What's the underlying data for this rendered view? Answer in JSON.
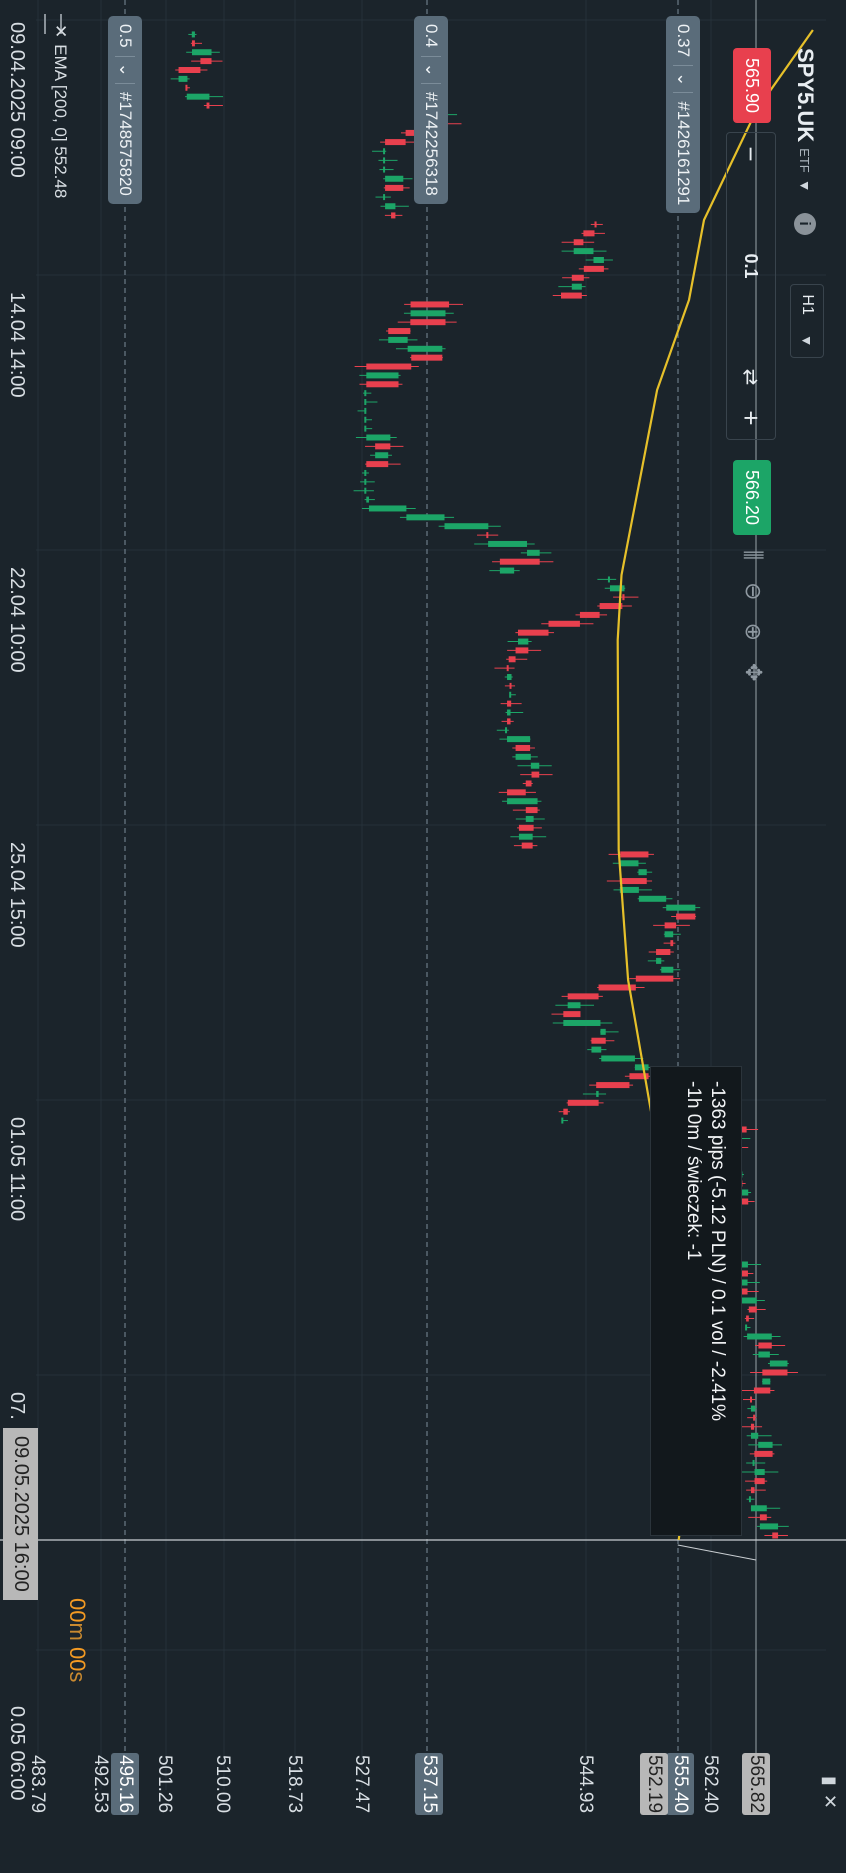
{
  "header": {
    "symbol": "SPY5.UK",
    "symbol_type": "ETF",
    "info_icon": "i",
    "timeframe": "H1",
    "sell_price": "565.90",
    "minus_label": "−",
    "quantity": "0.1",
    "plus_label": "+",
    "buy_price": "566.20",
    "tools": [
      "candles-icon",
      "zoom-out-icon",
      "zoom-in-icon",
      "move-icon"
    ]
  },
  "positions": [
    {
      "volume": "0.37",
      "id": "#1426161291"
    },
    {
      "volume": "0.4",
      "id": "#1742256318"
    },
    {
      "volume": "0.5",
      "id": "#1748575820"
    }
  ],
  "price_axis": {
    "ticks": [
      "562.40",
      "544.93",
      "527.47",
      "518.73",
      "510.00",
      "501.26",
      "492.53",
      "483.79"
    ],
    "labels": {
      "current": "565.82",
      "pos1": "555.40",
      "ema": "552.19",
      "pos2": "537.15",
      "pos3": "495.16"
    }
  },
  "time_axis": {
    "ticks": [
      "09.04.2025 09:00",
      "14.04 14:00",
      "22.04 10:00",
      "25.04 15:00",
      "01.05 11:00",
      "07."
    ],
    "crosshair": "09.05.2025 16:00",
    "right": "0.05 06:00"
  },
  "tooltip": {
    "line1": "-1363 pips (-5.12 PLN) / 0.1 vol / -2.41%",
    "line2": "-1h 0m / świeczek: -1"
  },
  "countdown": {
    "minutes": "00",
    "m": "m",
    "seconds": "00",
    "s": "s"
  },
  "ema_legend": {
    "text": "EMA [200, 0] 552.48"
  },
  "colors": {
    "up": "#1ca567",
    "down": "#e8404e",
    "ema": "#e6c02a",
    "bg": "#1b242b",
    "pos_label": "#5a6c7a"
  },
  "chart_data": {
    "type": "candlestick",
    "ylim": [
      483.79,
      568.0
    ],
    "ema_points": [
      [
        "09.04.2025 09:00",
        566.6
      ],
      [
        "10.04",
        560.6
      ],
      [
        "11.04",
        555.0
      ],
      [
        "14.04 14:00",
        553.4
      ],
      [
        "16.04",
        550.0
      ],
      [
        "22.04 10:00",
        546.2
      ],
      [
        "23.04",
        545.8
      ],
      [
        "25.04 15:00",
        545.9
      ],
      [
        "29.04",
        546.9
      ],
      [
        "01.05 11:00",
        549.6
      ],
      [
        "05.05",
        551.3
      ],
      [
        "08.05",
        553.6
      ],
      [
        "09.05.2025 16:00",
        552.3
      ]
    ],
    "segments": [
      {
        "from": "09.04.2025 09:00",
        "to": "10.04",
        "low": 495,
        "high": 506
      },
      {
        "from": "10.04",
        "to": "11.04",
        "low": 521,
        "high": 536
      },
      {
        "from": "11.04",
        "to": "14.04 14:00",
        "low": 536,
        "high": 545
      },
      {
        "from": "14.04 14:00",
        "to": "22.04 10:00",
        "low": 519,
        "high": 539
      },
      {
        "from": "22.04 10:00",
        "to": "25.04 15:00",
        "low": 534,
        "high": 548
      },
      {
        "from": "25.04 15:00",
        "to": "01.05 11:00",
        "low": 540,
        "high": 556
      },
      {
        "from": "01.05 11:00",
        "to": "07.05",
        "low": 555,
        "high": 566
      },
      {
        "from": "07.05",
        "to": "09.05.2025 16:00",
        "low": 560,
        "high": 568
      }
    ]
  }
}
